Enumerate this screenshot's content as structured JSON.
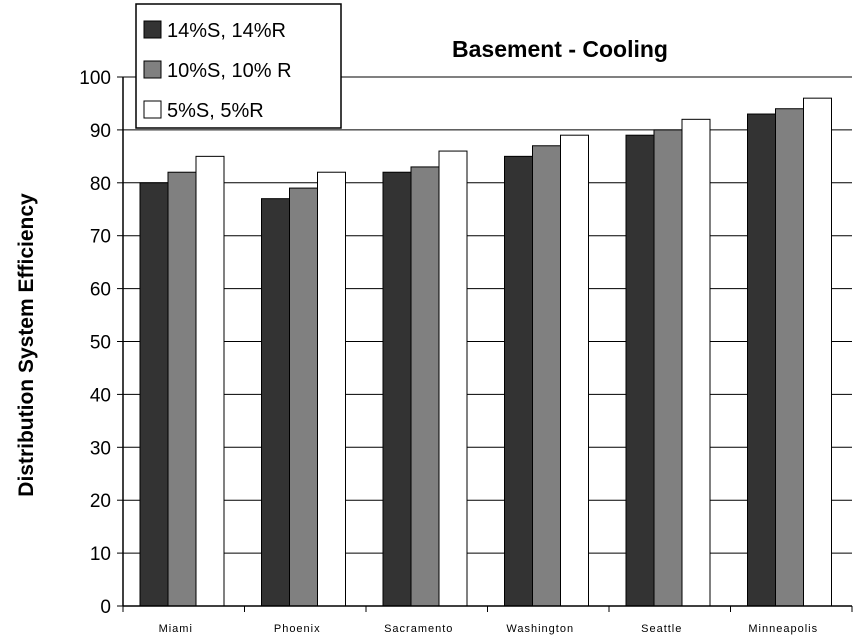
{
  "chart_data": {
    "type": "bar",
    "title": "Basement - Cooling",
    "xlabel": "",
    "ylabel": "Distribution System Efficiency",
    "ylim": [
      0,
      100
    ],
    "yticks": [
      0,
      10,
      20,
      30,
      40,
      50,
      60,
      70,
      80,
      90,
      100
    ],
    "grid": true,
    "legend_position": "top-left",
    "categories": [
      "Miami",
      "Phoenix",
      "Sacramento",
      "Washington",
      "Seattle",
      "Minneapolis"
    ],
    "series": [
      {
        "name": "14%S, 14%R",
        "color": "#333333",
        "values": [
          80,
          77,
          82,
          85,
          89,
          93
        ]
      },
      {
        "name": "10%S, 10% R",
        "color": "#808080",
        "values": [
          82,
          79,
          83,
          87,
          90,
          94
        ]
      },
      {
        "name": "5%S, 5%R",
        "color": "#ffffff",
        "values": [
          85,
          82,
          86,
          89,
          92,
          96
        ]
      }
    ]
  }
}
